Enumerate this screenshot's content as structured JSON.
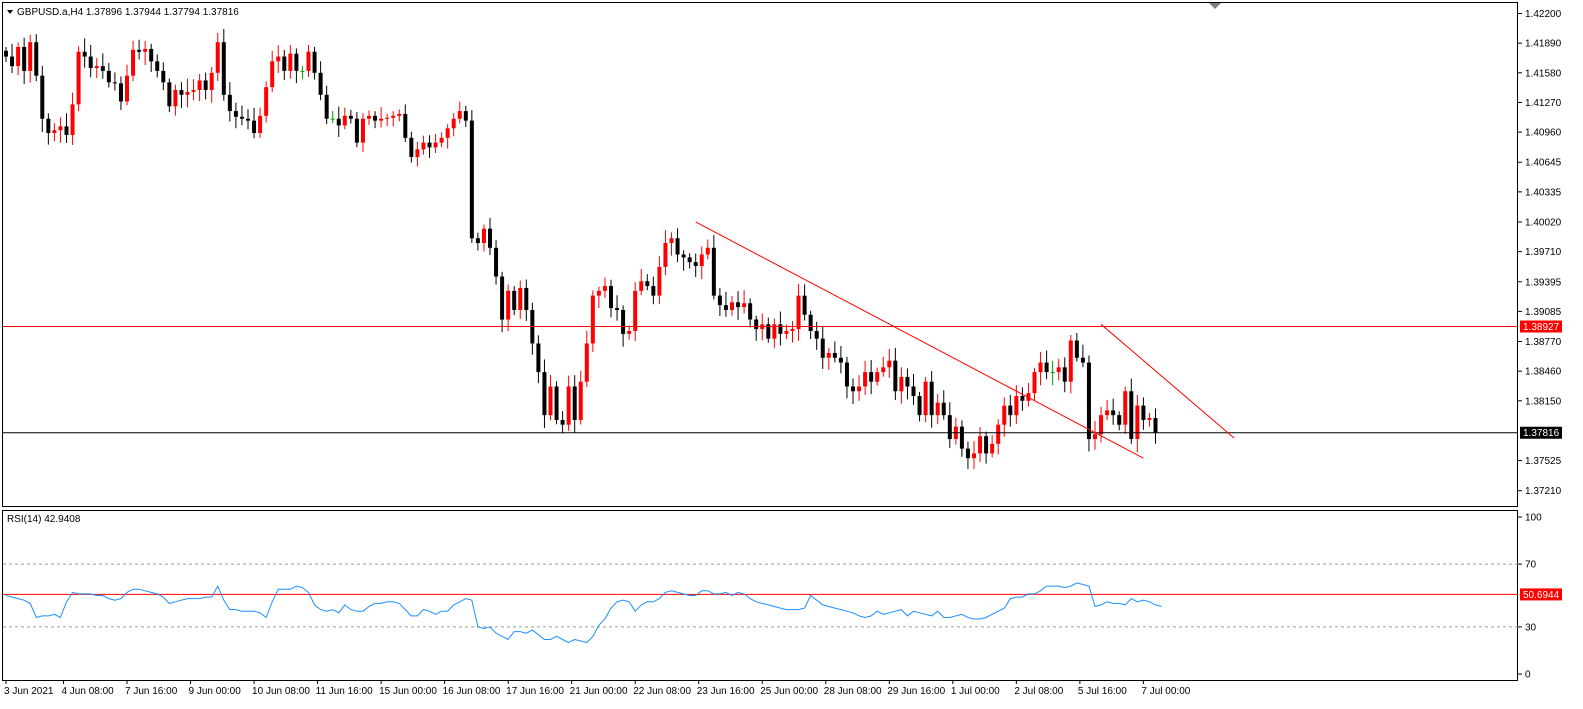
{
  "chart_data": [
    {
      "type": "candlestick",
      "title": "GBPUSD.a,H4  1.37896 1.37944 1.37794 1.37816",
      "ylim": [
        1.3705,
        1.4231
      ],
      "y_ticks": [
        "1.42200",
        "1.41890",
        "1.41580",
        "1.41270",
        "1.40960",
        "1.40645",
        "1.40335",
        "1.40020",
        "1.39710",
        "1.39395",
        "1.39085",
        "1.38770",
        "1.38460",
        "1.38150",
        "1.37525",
        "1.37210"
      ],
      "x_tick_labels": [
        {
          "label": "3 Jun 2021",
          "index": 0
        },
        {
          "label": "4 Jun 08:00",
          "index": 9.5
        },
        {
          "label": "7 Jun 16:00",
          "index": 20
        },
        {
          "label": "9 Jun 00:00",
          "index": 30.5
        },
        {
          "label": "10 Jun 08:00",
          "index": 41
        },
        {
          "label": "11 Jun 16:00",
          "index": 51.5
        },
        {
          "label": "15 Jun 00:00",
          "index": 62
        },
        {
          "label": "16 Jun 08:00",
          "index": 72.5
        },
        {
          "label": "17 Jun 16:00",
          "index": 83
        },
        {
          "label": "21 Jun 00:00",
          "index": 93.5
        },
        {
          "label": "22 Jun 08:00",
          "index": 104
        },
        {
          "label": "23 Jun 16:00",
          "index": 114.5
        },
        {
          "label": "25 Jun 00:00",
          "index": 125
        },
        {
          "label": "28 Jun 08:00",
          "index": 135.5
        },
        {
          "label": "29 Jun 16:00",
          "index": 146
        },
        {
          "label": "1 Jul 00:00",
          "index": 156.5
        },
        {
          "label": "2 Jul 08:00",
          "index": 167
        },
        {
          "label": "5 Jul 16:00",
          "index": 177.5
        },
        {
          "label": "7 Jul 00:00",
          "index": 188
        }
      ],
      "series": {
        "close": [
          1.4175,
          1.4165,
          1.4185,
          1.416,
          1.419,
          1.4155,
          1.411,
          1.4095,
          1.4098,
          1.4102,
          1.4093,
          1.4125,
          1.418,
          1.4175,
          1.4163,
          1.4165,
          1.416,
          1.4148,
          1.4147,
          1.4128,
          1.4155,
          1.4182,
          1.418,
          1.4183,
          1.417,
          1.416,
          1.4148,
          1.4123,
          1.414,
          1.4135,
          1.4138,
          1.414,
          1.415,
          1.414,
          1.4158,
          1.419,
          1.4135,
          1.4118,
          1.4112,
          1.411,
          1.4108,
          1.4095,
          1.4113,
          1.4143,
          1.417,
          1.4175,
          1.416,
          1.4178,
          1.416,
          1.416,
          1.418,
          1.4158,
          1.4135,
          1.411,
          1.411,
          1.4103,
          1.4113,
          1.411,
          1.4085,
          1.411,
          1.4113,
          1.4108,
          1.411,
          1.4111,
          1.4113,
          1.4115,
          1.409,
          1.407,
          1.4078,
          1.4085,
          1.408,
          1.4085,
          1.409,
          1.41,
          1.411,
          1.4118,
          1.4108,
          1.3985,
          1.398,
          1.3995,
          1.3975,
          1.3945,
          1.39,
          1.393,
          1.391,
          1.3933,
          1.391,
          1.3875,
          1.3845,
          1.38,
          1.383,
          1.3795,
          1.379,
          1.383,
          1.3795,
          1.3835,
          1.3875,
          1.3925,
          1.393,
          1.3935,
          1.3912,
          1.391,
          1.3885,
          1.3888,
          1.393,
          1.394,
          1.3935,
          1.3925,
          1.3955,
          1.398,
          1.3985,
          1.3968,
          1.3965,
          1.396,
          1.3956,
          1.3968,
          1.3975,
          1.3925,
          1.3915,
          1.391,
          1.3918,
          1.3913,
          1.3917,
          1.39,
          1.389,
          1.3895,
          1.388,
          1.3895,
          1.3885,
          1.3888,
          1.389,
          1.3925,
          1.3905,
          1.3888,
          1.388,
          1.386,
          1.3865,
          1.386,
          1.3855,
          1.383,
          1.3825,
          1.383,
          1.3845,
          1.3835,
          1.3845,
          1.385,
          1.3857,
          1.3825,
          1.384,
          1.383,
          1.382,
          1.38,
          1.3835,
          1.38,
          1.3813,
          1.38,
          1.3775,
          1.3788,
          1.3765,
          1.3755,
          1.376,
          1.3778,
          1.376,
          1.377,
          1.379,
          1.381,
          1.38,
          1.382,
          1.3815,
          1.3823,
          1.3845,
          1.3855,
          1.3845,
          1.3845,
          1.385,
          1.3835,
          1.3878,
          1.386,
          1.3855,
          1.3775,
          1.378,
          1.38,
          1.3805,
          1.38,
          1.379,
          1.3825,
          1.3775,
          1.381,
          1.3795,
          1.3797,
          1.3782
        ],
        "change": [
          -1,
          -1,
          1,
          -1,
          1,
          -1,
          -1,
          -1,
          1,
          1,
          -1,
          1,
          1,
          -1,
          -1,
          1,
          -1,
          -1,
          -1,
          -1,
          1,
          1,
          -1,
          1,
          -1,
          -1,
          -1,
          -1,
          1,
          -1,
          1,
          1,
          1,
          -1,
          1,
          1,
          -1,
          -1,
          -1,
          -1,
          -1,
          -1,
          1,
          1,
          1,
          1,
          -1,
          1,
          -1,
          -1,
          1,
          -1,
          -1,
          -1,
          1,
          -1,
          1,
          -1,
          -1,
          1,
          1,
          -1,
          1,
          1,
          1,
          1,
          -1,
          -1,
          1,
          1,
          -1,
          1,
          1,
          1,
          1,
          1,
          -1,
          -1,
          -1,
          1,
          -1,
          -1,
          -1,
          1,
          -1,
          1,
          -1,
          -1,
          -1,
          -1,
          1,
          -1,
          -1,
          1,
          -1,
          1,
          1,
          1,
          1,
          1,
          -1,
          -1,
          -1,
          1,
          1,
          1,
          -1,
          -1,
          1,
          1,
          1,
          -1,
          -1,
          -1,
          -1,
          1,
          1,
          -1,
          -1,
          -1,
          1,
          -1,
          1,
          -1,
          -1,
          1,
          -1,
          1,
          -1,
          1,
          1,
          1,
          -1,
          -1,
          -1,
          -1,
          1,
          -1,
          -1,
          -1,
          -1,
          1,
          1,
          -1,
          1,
          1,
          1,
          -1,
          1,
          -1,
          -1,
          -1,
          1,
          -1,
          1,
          -1,
          -1,
          1,
          -1,
          -1,
          1,
          1,
          -1,
          1,
          1,
          1,
          -1,
          1,
          -1,
          1,
          1,
          1,
          -1,
          -1,
          1,
          -1,
          1,
          -1,
          -1,
          -1,
          1,
          1,
          1,
          -1,
          1,
          -1,
          -1,
          1,
          1,
          -1,
          -1
        ]
      },
      "horizontal_lines": [
        {
          "value": 1.38927,
          "label": "1.38927",
          "color": "#ff0000"
        },
        {
          "value": 1.37816,
          "label": "1.37816",
          "color": "#000000"
        }
      ],
      "trendlines": [
        {
          "from": [
            114,
            1.4002
          ],
          "to": [
            188,
            1.3755
          ],
          "color": "#ff0000"
        },
        {
          "from": [
            181,
            1.3895
          ],
          "to": [
            203,
            1.3776
          ],
          "color": "#ff0000"
        }
      ],
      "colors": {
        "bull": "#ff0000",
        "bear": "#000000",
        "doji": "#00a000"
      }
    },
    {
      "type": "line",
      "title": "RSI(14) 42.9408",
      "ylim": [
        0,
        100
      ],
      "y_ticks": [
        "100",
        "70",
        "50.6944",
        "30",
        "0"
      ],
      "levels": [
        70,
        30
      ],
      "highlight_level": {
        "value": 50.6944,
        "label": "50.6944",
        "color": "#ff0000"
      },
      "series": [
        {
          "color": "#1e90ff",
          "values": [
            50,
            49,
            48,
            47,
            45,
            36,
            37,
            37,
            38,
            36,
            46,
            52,
            51,
            51,
            51,
            50,
            50,
            48,
            47,
            48,
            52,
            54,
            54,
            53,
            52,
            51,
            49,
            45,
            46,
            47,
            48,
            48,
            48,
            49,
            49,
            56,
            47,
            41,
            41,
            40,
            40,
            40,
            39,
            36,
            46,
            54,
            54,
            54,
            56,
            55,
            52,
            44,
            41,
            40,
            41,
            39,
            44,
            41,
            40,
            40,
            43,
            45,
            45,
            46,
            46,
            45,
            41,
            37,
            37,
            41,
            40,
            38,
            40,
            40,
            44,
            46,
            48,
            47,
            30,
            29,
            30,
            26,
            24,
            22,
            27,
            27,
            26,
            28,
            25,
            22,
            22,
            24,
            22,
            20,
            22,
            21,
            20,
            24,
            31,
            35,
            42,
            46,
            47,
            46,
            40,
            44,
            46,
            46,
            48,
            52,
            53,
            52,
            51,
            50,
            50,
            53,
            53,
            51,
            51,
            52,
            50,
            52,
            51,
            48,
            46,
            45,
            44,
            43,
            42,
            41,
            41,
            41,
            42,
            50,
            47,
            44,
            43,
            42,
            41,
            40,
            39,
            37,
            36,
            37,
            40,
            38,
            39,
            40,
            41,
            37,
            40,
            39,
            38,
            37,
            40,
            36,
            36,
            37,
            38,
            36,
            35,
            35,
            36,
            38,
            40,
            42,
            48,
            49,
            49,
            51,
            51,
            53,
            56,
            56,
            56,
            55,
            56,
            58,
            57,
            56,
            43,
            44,
            46,
            45,
            45,
            44,
            48,
            46,
            47,
            46,
            44,
            43
          ]
        }
      ]
    }
  ]
}
